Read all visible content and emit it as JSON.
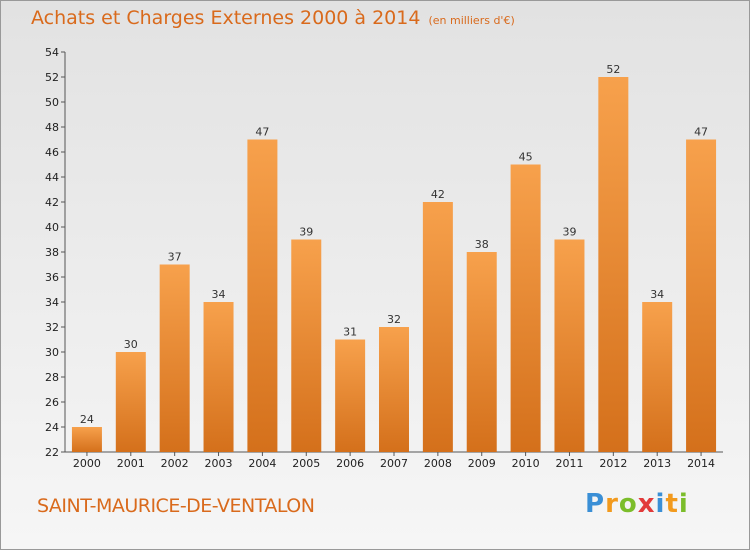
{
  "header": {
    "title": "Achats et Charges Externes 2000 à 2014",
    "subtitle": "(en milliers d'€)"
  },
  "footer": {
    "commune": "SAINT-MAURICE-DE-VENTALON",
    "logo_text": "Proxiti"
  },
  "colors": {
    "accent": "#d96a1c",
    "bar_light": "#f7a14c",
    "bar_dark": "#d4701b",
    "axis": "#555555"
  },
  "chart_data": {
    "type": "bar",
    "title": "Achats et Charges Externes 2000 à 2014",
    "subtitle": "(en milliers d'€)",
    "xlabel": "",
    "ylabel": "",
    "categories": [
      "2000",
      "2001",
      "2002",
      "2003",
      "2004",
      "2005",
      "2006",
      "2007",
      "2008",
      "2009",
      "2010",
      "2011",
      "2012",
      "2013",
      "2014"
    ],
    "values": [
      24,
      30,
      37,
      34,
      47,
      39,
      31,
      32,
      42,
      38,
      45,
      39,
      52,
      34,
      47
    ],
    "ylim": [
      22,
      54
    ],
    "yticks": [
      22,
      24,
      26,
      28,
      30,
      32,
      34,
      36,
      38,
      40,
      42,
      44,
      46,
      48,
      50,
      52,
      54
    ],
    "grid": false,
    "legend": "none"
  }
}
